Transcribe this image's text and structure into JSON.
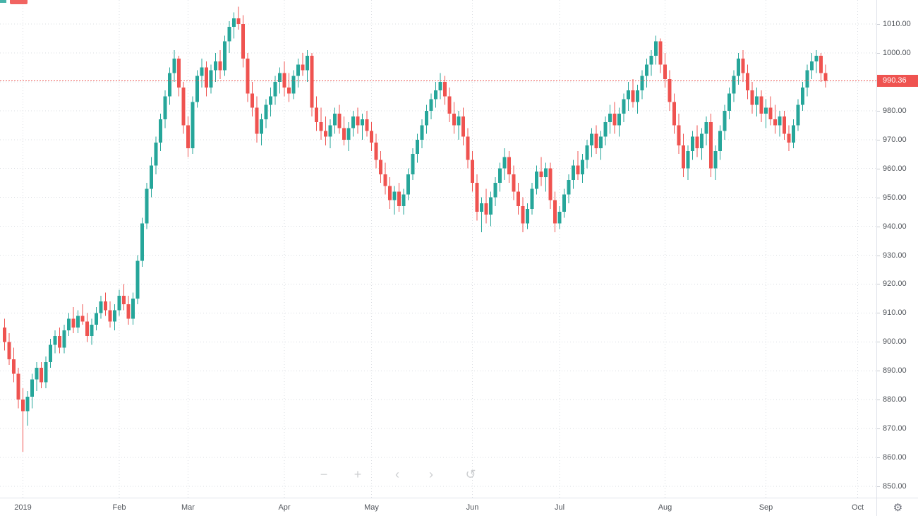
{
  "toolbar": {
    "zoom_out": "−",
    "zoom_in": "+",
    "pan_left": "‹",
    "pan_right": "›",
    "reset_view": "↺",
    "settings": "⚙"
  },
  "price_axis": {
    "last_price_label": "990.36"
  },
  "chart_data": {
    "type": "candlestick",
    "title": "",
    "legend_position": "none",
    "grid": true,
    "y_axis": {
      "min": 850,
      "max": 1010,
      "step": 10
    },
    "x_ticks": [
      {
        "label": "2019",
        "index": 4
      },
      {
        "label": "Feb",
        "index": 25
      },
      {
        "label": "Mar",
        "index": 40
      },
      {
        "label": "Apr",
        "index": 61
      },
      {
        "label": "May",
        "index": 80
      },
      {
        "label": "Jun",
        "index": 102
      },
      {
        "label": "Jul",
        "index": 121
      },
      {
        "label": "Aug",
        "index": 144
      },
      {
        "label": "Sep",
        "index": 166
      },
      {
        "label": "Oct",
        "index": 186
      }
    ],
    "last_price": 990.36,
    "colors": {
      "up": "#26a69a",
      "down": "#ef5350",
      "grid": "#dadde2",
      "last_price_line": "#ef5350",
      "last_price_badge": "#ef5350"
    },
    "ohlc": [
      [
        905,
        908,
        897,
        900
      ],
      [
        900,
        903,
        892,
        894
      ],
      [
        894,
        898,
        886,
        889
      ],
      [
        889,
        891,
        877,
        880
      ],
      [
        880,
        884,
        862,
        876
      ],
      [
        876,
        883,
        871,
        881
      ],
      [
        881,
        889,
        877,
        887
      ],
      [
        887,
        893,
        883,
        891
      ],
      [
        891,
        893,
        884,
        886
      ],
      [
        886,
        895,
        884,
        893
      ],
      [
        893,
        901,
        891,
        899
      ],
      [
        899,
        904,
        896,
        902
      ],
      [
        902,
        905,
        896,
        898
      ],
      [
        898,
        906,
        896,
        904
      ],
      [
        904,
        910,
        902,
        908
      ],
      [
        908,
        912,
        903,
        905
      ],
      [
        905,
        911,
        903,
        909
      ],
      [
        909,
        913,
        906,
        907
      ],
      [
        907,
        910,
        900,
        902
      ],
      [
        902,
        908,
        899,
        906
      ],
      [
        906,
        912,
        904,
        910
      ],
      [
        910,
        916,
        908,
        914
      ],
      [
        914,
        917,
        909,
        911
      ],
      [
        911,
        914,
        905,
        907
      ],
      [
        907,
        913,
        904,
        911
      ],
      [
        911,
        918,
        909,
        916
      ],
      [
        916,
        920,
        911,
        913
      ],
      [
        913,
        916,
        906,
        908
      ],
      [
        908,
        917,
        906,
        915
      ],
      [
        915,
        930,
        913,
        928
      ],
      [
        928,
        943,
        926,
        941
      ],
      [
        941,
        955,
        939,
        953
      ],
      [
        953,
        964,
        950,
        961
      ],
      [
        961,
        971,
        958,
        969
      ],
      [
        969,
        979,
        966,
        977
      ],
      [
        977,
        987,
        974,
        985
      ],
      [
        985,
        995,
        982,
        993
      ],
      [
        993,
        1001,
        990,
        998
      ],
      [
        998,
        999,
        985,
        988
      ],
      [
        988,
        990,
        972,
        975
      ],
      [
        975,
        978,
        964,
        967
      ],
      [
        967,
        985,
        965,
        983
      ],
      [
        983,
        994,
        981,
        992
      ],
      [
        992,
        998,
        988,
        995
      ],
      [
        995,
        997,
        985,
        988
      ],
      [
        988,
        996,
        986,
        994
      ],
      [
        994,
        1000,
        990,
        997
      ],
      [
        997,
        1001,
        991,
        994
      ],
      [
        994,
        1006,
        992,
        1004
      ],
      [
        1004,
        1011,
        1000,
        1009
      ],
      [
        1009,
        1014,
        1005,
        1012
      ],
      [
        1012,
        1016,
        1008,
        1010
      ],
      [
        1010,
        1013,
        995,
        998
      ],
      [
        998,
        1000,
        983,
        986
      ],
      [
        986,
        990,
        978,
        981
      ],
      [
        981,
        985,
        969,
        972
      ],
      [
        972,
        979,
        968,
        977
      ],
      [
        977,
        984,
        974,
        982
      ],
      [
        982,
        988,
        978,
        985
      ],
      [
        985,
        992,
        982,
        990
      ],
      [
        990,
        995,
        986,
        993
      ],
      [
        993,
        997,
        985,
        988
      ],
      [
        988,
        993,
        983,
        986
      ],
      [
        986,
        994,
        984,
        992
      ],
      [
        992,
        998,
        988,
        996
      ],
      [
        996,
        1000,
        992,
        994
      ],
      [
        994,
        1001,
        990,
        999
      ],
      [
        999,
        1000,
        978,
        981
      ],
      [
        981,
        985,
        973,
        976
      ],
      [
        976,
        981,
        970,
        973
      ],
      [
        973,
        978,
        968,
        971
      ],
      [
        971,
        977,
        967,
        975
      ],
      [
        975,
        981,
        972,
        979
      ],
      [
        979,
        982,
        972,
        974
      ],
      [
        974,
        978,
        968,
        970
      ],
      [
        970,
        976,
        966,
        974
      ],
      [
        974,
        980,
        971,
        978
      ],
      [
        978,
        981,
        972,
        975
      ],
      [
        975,
        979,
        970,
        977
      ],
      [
        977,
        980,
        971,
        973
      ],
      [
        973,
        976,
        966,
        969
      ],
      [
        969,
        972,
        960,
        963
      ],
      [
        963,
        966,
        955,
        958
      ],
      [
        958,
        962,
        951,
        954
      ],
      [
        954,
        957,
        946,
        949
      ],
      [
        949,
        954,
        944,
        952
      ],
      [
        952,
        955,
        945,
        947
      ],
      [
        947,
        953,
        944,
        951
      ],
      [
        951,
        960,
        949,
        958
      ],
      [
        958,
        967,
        956,
        965
      ],
      [
        965,
        972,
        962,
        970
      ],
      [
        970,
        977,
        967,
        975
      ],
      [
        975,
        982,
        972,
        980
      ],
      [
        980,
        986,
        977,
        984
      ],
      [
        984,
        990,
        981,
        987
      ],
      [
        987,
        993,
        984,
        990
      ],
      [
        990,
        992,
        982,
        985
      ],
      [
        985,
        988,
        976,
        979
      ],
      [
        979,
        983,
        972,
        975
      ],
      [
        975,
        980,
        970,
        978
      ],
      [
        978,
        981,
        968,
        971
      ],
      [
        971,
        974,
        960,
        963
      ],
      [
        963,
        966,
        952,
        955
      ],
      [
        955,
        958,
        942,
        945
      ],
      [
        945,
        950,
        938,
        948
      ],
      [
        948,
        953,
        941,
        944
      ],
      [
        944,
        952,
        940,
        950
      ],
      [
        950,
        957,
        947,
        955
      ],
      [
        955,
        962,
        952,
        960
      ],
      [
        960,
        967,
        956,
        964
      ],
      [
        964,
        966,
        955,
        958
      ],
      [
        958,
        961,
        949,
        952
      ],
      [
        952,
        955,
        944,
        947
      ],
      [
        947,
        950,
        938,
        941
      ],
      [
        941,
        948,
        939,
        946
      ],
      [
        946,
        955,
        944,
        953
      ],
      [
        953,
        961,
        951,
        959
      ],
      [
        959,
        964,
        954,
        957
      ],
      [
        957,
        962,
        952,
        960
      ],
      [
        960,
        962,
        946,
        949
      ],
      [
        949,
        952,
        938,
        941
      ],
      [
        941,
        947,
        939,
        945
      ],
      [
        945,
        953,
        943,
        951
      ],
      [
        951,
        958,
        948,
        956
      ],
      [
        956,
        963,
        953,
        961
      ],
      [
        961,
        966,
        956,
        958
      ],
      [
        958,
        965,
        955,
        963
      ],
      [
        963,
        970,
        960,
        968
      ],
      [
        968,
        974,
        964,
        972
      ],
      [
        972,
        975,
        965,
        967
      ],
      [
        967,
        973,
        963,
        971
      ],
      [
        971,
        978,
        968,
        976
      ],
      [
        976,
        982,
        972,
        979
      ],
      [
        979,
        983,
        972,
        975
      ],
      [
        975,
        981,
        971,
        979
      ],
      [
        979,
        986,
        976,
        984
      ],
      [
        984,
        990,
        980,
        987
      ],
      [
        987,
        991,
        981,
        983
      ],
      [
        983,
        989,
        979,
        987
      ],
      [
        987,
        994,
        984,
        992
      ],
      [
        992,
        998,
        988,
        996
      ],
      [
        996,
        1001,
        992,
        999
      ],
      [
        999,
        1006,
        996,
        1004
      ],
      [
        1004,
        1005,
        993,
        996
      ],
      [
        996,
        1000,
        988,
        991
      ],
      [
        991,
        994,
        980,
        983
      ],
      [
        983,
        986,
        972,
        975
      ],
      [
        975,
        979,
        965,
        968
      ],
      [
        968,
        972,
        957,
        960
      ],
      [
        960,
        968,
        956,
        966
      ],
      [
        966,
        973,
        963,
        971
      ],
      [
        971,
        975,
        964,
        967
      ],
      [
        967,
        974,
        963,
        972
      ],
      [
        972,
        978,
        968,
        976
      ],
      [
        976,
        979,
        957,
        960
      ],
      [
        960,
        968,
        956,
        966
      ],
      [
        966,
        975,
        963,
        973
      ],
      [
        973,
        982,
        970,
        980
      ],
      [
        980,
        988,
        977,
        986
      ],
      [
        986,
        994,
        983,
        992
      ],
      [
        992,
        1000,
        989,
        998
      ],
      [
        998,
        1001,
        990,
        993
      ],
      [
        993,
        996,
        984,
        987
      ],
      [
        987,
        990,
        979,
        982
      ],
      [
        982,
        988,
        978,
        985
      ],
      [
        985,
        987,
        976,
        979
      ],
      [
        979,
        984,
        974,
        981
      ],
      [
        981,
        985,
        975,
        977
      ],
      [
        977,
        982,
        972,
        975
      ],
      [
        975,
        980,
        971,
        978
      ],
      [
        978,
        980,
        970,
        972
      ],
      [
        972,
        975,
        966,
        969
      ],
      [
        969,
        977,
        967,
        975
      ],
      [
        975,
        984,
        973,
        982
      ],
      [
        982,
        990,
        980,
        988
      ],
      [
        988,
        996,
        985,
        994
      ],
      [
        994,
        1000,
        991,
        997
      ],
      [
        997,
        1001,
        993,
        999
      ],
      [
        999,
        1000,
        990,
        993
      ],
      [
        993,
        996,
        988,
        990.36
      ]
    ]
  }
}
